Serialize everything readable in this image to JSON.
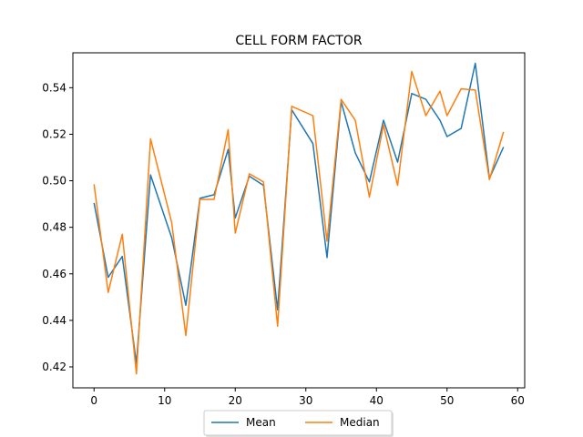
{
  "chart_data": {
    "type": "line",
    "title": "CELL FORM FACTOR",
    "xlabel": "",
    "ylabel": "",
    "xlim": [
      -3,
      61
    ],
    "ylim": [
      0.411,
      0.555
    ],
    "xticks": [
      0,
      10,
      20,
      30,
      40,
      50,
      60
    ],
    "yticks": [
      0.42,
      0.44,
      0.46,
      0.48,
      0.5,
      0.52,
      0.54
    ],
    "ytick_labels": [
      "0.42",
      "0.44",
      "0.46",
      "0.48",
      "0.50",
      "0.52",
      "0.54"
    ],
    "legend_position": "bottom-center",
    "grid": false,
    "series": [
      {
        "name": "Mean",
        "color": "#1f77b4",
        "x": [
          0,
          2,
          4,
          6,
          8,
          11,
          13,
          15,
          17,
          19,
          20,
          22,
          24,
          26,
          28,
          31,
          33,
          35,
          37,
          39,
          41,
          43,
          45,
          47,
          49,
          50,
          52,
          54,
          56,
          58
        ],
        "y": [
          0.4905,
          0.4585,
          0.4675,
          0.4215,
          0.5025,
          0.4755,
          0.4465,
          0.4925,
          0.494,
          0.5135,
          0.484,
          0.502,
          0.498,
          0.4445,
          0.5305,
          0.516,
          0.467,
          0.534,
          0.512,
          0.4995,
          0.526,
          0.508,
          0.5375,
          0.535,
          0.526,
          0.519,
          0.5225,
          0.5505,
          0.501,
          0.5145
        ]
      },
      {
        "name": "Median",
        "color": "#ff7f0e",
        "x": [
          0,
          2,
          4,
          6,
          8,
          11,
          13,
          15,
          17,
          19,
          20,
          22,
          24,
          26,
          28,
          31,
          33,
          35,
          37,
          39,
          41,
          43,
          45,
          47,
          49,
          50,
          52,
          54,
          56,
          58
        ],
        "y": [
          0.4985,
          0.452,
          0.477,
          0.417,
          0.518,
          0.482,
          0.4335,
          0.492,
          0.492,
          0.522,
          0.4775,
          0.503,
          0.4995,
          0.4375,
          0.532,
          0.528,
          0.474,
          0.535,
          0.526,
          0.493,
          0.524,
          0.498,
          0.547,
          0.528,
          0.5385,
          0.528,
          0.5395,
          0.539,
          0.5005,
          0.521
        ]
      }
    ]
  }
}
